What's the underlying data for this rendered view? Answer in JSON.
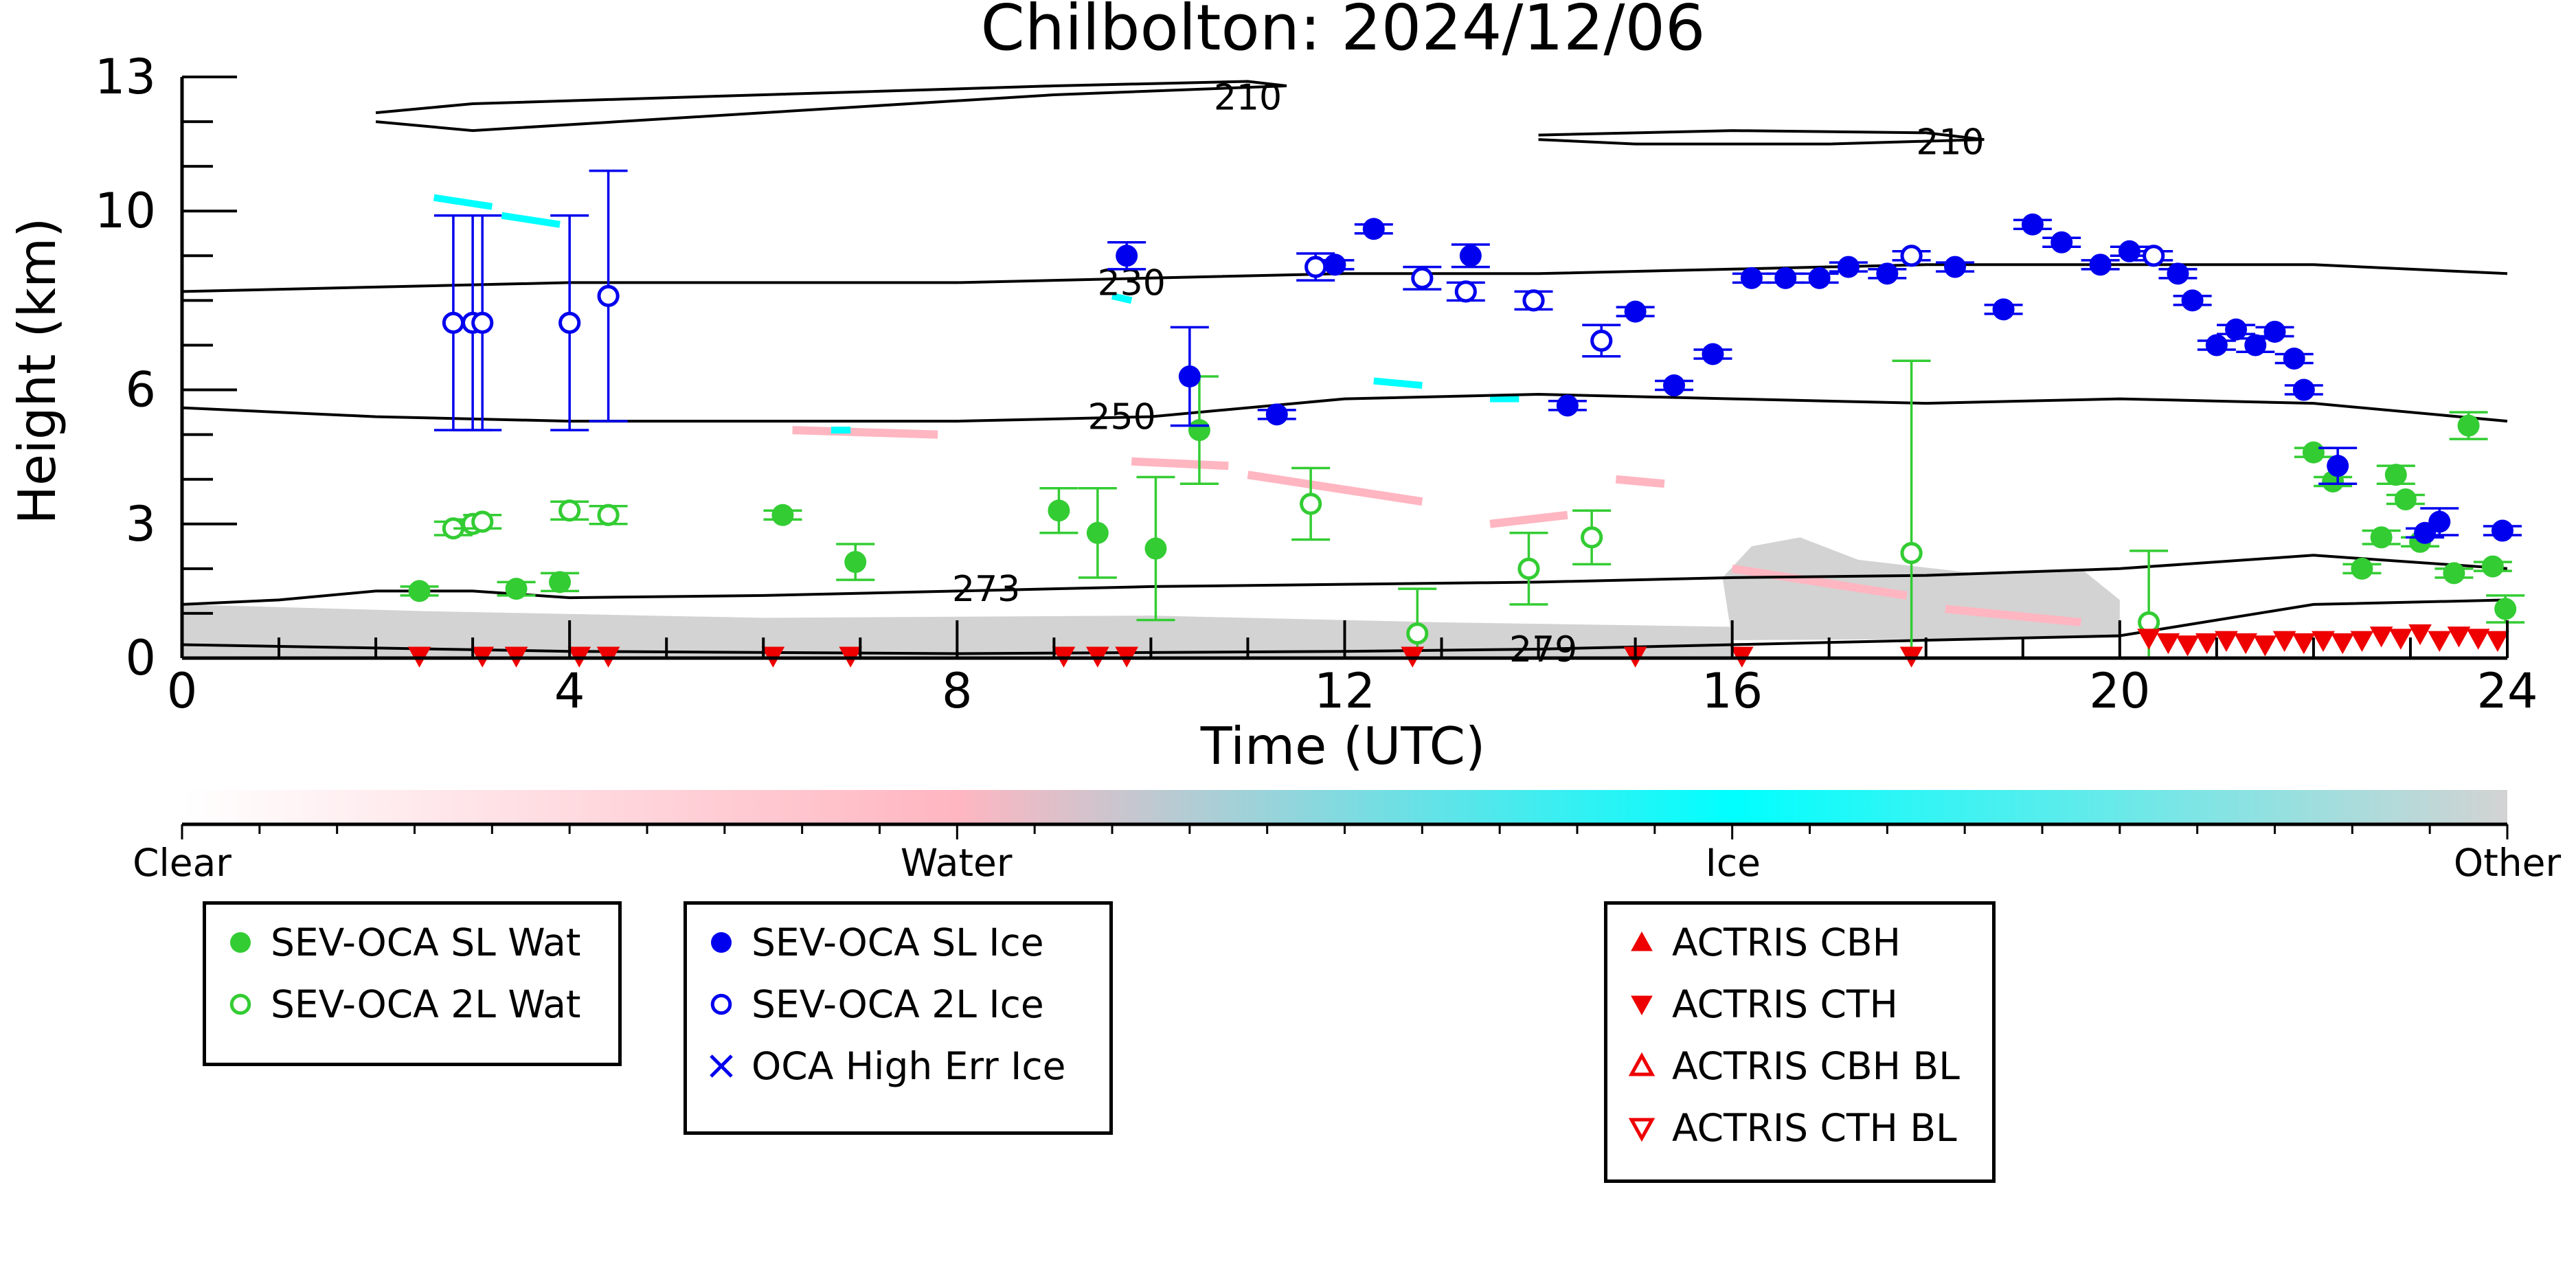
{
  "chart_data": {
    "type": "scatter",
    "title": "Chilbolton: 2024/12/06",
    "xlabel": "Time (UTC)",
    "ylabel": "Height (km)",
    "xlim": [
      0,
      24
    ],
    "ylim": [
      0,
      13
    ],
    "xticks": [
      0,
      4,
      8,
      12,
      16,
      20,
      24
    ],
    "yticks": [
      0,
      3,
      6,
      10,
      13
    ],
    "colorbar": {
      "labels": [
        "Clear",
        "Water",
        "Ice",
        "Other"
      ],
      "colors": [
        "#ffffff",
        "#ffb6c1",
        "#00ffff",
        "#d3d3d3"
      ]
    },
    "contours": [
      {
        "label": "210",
        "segments": [
          [
            [
              2.0,
              12.2
            ],
            [
              3.0,
              12.4
            ],
            [
              6.0,
              12.6
            ],
            [
              9.0,
              12.8
            ],
            [
              11.0,
              12.9
            ],
            [
              11.4,
              12.8
            ],
            [
              9.0,
              12.6
            ],
            [
              6.0,
              12.2
            ],
            [
              3.0,
              11.8
            ],
            [
              2.0,
              12.0
            ]
          ],
          [
            [
              14.0,
              11.7
            ],
            [
              16.0,
              11.8
            ],
            [
              18.0,
              11.75
            ],
            [
              18.6,
              11.6
            ],
            [
              17.0,
              11.5
            ],
            [
              15.0,
              11.5
            ],
            [
              14.0,
              11.6
            ]
          ]
        ]
      },
      {
        "label": "230",
        "segments": [
          [
            [
              0,
              8.2
            ],
            [
              2,
              8.3
            ],
            [
              4,
              8.4
            ],
            [
              8,
              8.4
            ],
            [
              10,
              8.5
            ],
            [
              12,
              8.6
            ],
            [
              14,
              8.6
            ],
            [
              16,
              8.7
            ],
            [
              18,
              8.8
            ],
            [
              20,
              8.8
            ],
            [
              22,
              8.8
            ],
            [
              24,
              8.6
            ]
          ]
        ]
      },
      {
        "label": "250",
        "segments": [
          [
            [
              0,
              5.6
            ],
            [
              2,
              5.4
            ],
            [
              4,
              5.3
            ],
            [
              8,
              5.3
            ],
            [
              10,
              5.4
            ],
            [
              12,
              5.8
            ],
            [
              14,
              5.9
            ],
            [
              16,
              5.8
            ],
            [
              18,
              5.7
            ],
            [
              20,
              5.8
            ],
            [
              22,
              5.7
            ],
            [
              24,
              5.3
            ]
          ]
        ]
      },
      {
        "label": "273",
        "segments": [
          [
            [
              0,
              1.2
            ],
            [
              1,
              1.3
            ],
            [
              2,
              1.5
            ],
            [
              3,
              1.5
            ],
            [
              4,
              1.35
            ],
            [
              6,
              1.4
            ],
            [
              8,
              1.5
            ],
            [
              10,
              1.6
            ],
            [
              12,
              1.65
            ],
            [
              14,
              1.7
            ],
            [
              16,
              1.8
            ],
            [
              18,
              1.85
            ],
            [
              20,
              2.0
            ],
            [
              22,
              2.3
            ],
            [
              24,
              2.0
            ]
          ]
        ]
      },
      {
        "label": "279",
        "segments": [
          [
            [
              0,
              0.3
            ],
            [
              4,
              0.15
            ],
            [
              8,
              0.1
            ],
            [
              12,
              0.15
            ],
            [
              14,
              0.2
            ],
            [
              16,
              0.3
            ],
            [
              18,
              0.4
            ],
            [
              20,
              0.5
            ],
            [
              22,
              1.2
            ],
            [
              24,
              1.3
            ]
          ]
        ]
      }
    ],
    "series": [
      {
        "name": "SEV-OCA SL Wat",
        "color": "#33cc33",
        "marker": "filled-circle",
        "points": [
          [
            2.45,
            1.5,
            0.1
          ],
          [
            3.45,
            1.55,
            0.15
          ],
          [
            3.9,
            1.7,
            0.2
          ],
          [
            6.2,
            3.2,
            0.1
          ],
          [
            6.95,
            2.15,
            0.4
          ],
          [
            9.05,
            3.3,
            0.5
          ],
          [
            9.45,
            2.8,
            1.0
          ],
          [
            10.05,
            2.45,
            1.6
          ],
          [
            10.5,
            5.1,
            1.2
          ],
          [
            22.0,
            4.6,
            0.1
          ],
          [
            22.2,
            3.95,
            0.1
          ],
          [
            22.5,
            2.0,
            0.1
          ],
          [
            22.7,
            2.7,
            0.15
          ],
          [
            22.85,
            4.1,
            0.2
          ],
          [
            22.95,
            3.55,
            0.1
          ],
          [
            23.1,
            2.6,
            0.1
          ],
          [
            23.45,
            1.9,
            0.1
          ],
          [
            23.6,
            5.2,
            0.3
          ],
          [
            23.85,
            2.05,
            0.1
          ],
          [
            23.98,
            1.1,
            0.3
          ]
        ]
      },
      {
        "name": "SEV-OCA 2L Wat",
        "color": "#33cc33",
        "marker": "open-circle",
        "points": [
          [
            2.8,
            2.9,
            0.15
          ],
          [
            3.0,
            3.0,
            0.1
          ],
          [
            3.1,
            3.05,
            0.15
          ],
          [
            4.0,
            3.3,
            0.2
          ],
          [
            4.4,
            3.2,
            0.2
          ],
          [
            11.65,
            3.45,
            0.8
          ],
          [
            12.75,
            0.55,
            1.0
          ],
          [
            13.9,
            2.0,
            0.8
          ],
          [
            14.55,
            2.7,
            0.6
          ],
          [
            17.85,
            2.35,
            4.3
          ],
          [
            20.3,
            0.8,
            1.6
          ]
        ]
      },
      {
        "name": "SEV-OCA SL Ice",
        "color": "#0000ee",
        "marker": "filled-circle",
        "points": [
          [
            9.75,
            9.0,
            0.3
          ],
          [
            10.4,
            6.3,
            1.1
          ],
          [
            11.3,
            5.45,
            0.1
          ],
          [
            11.9,
            8.8,
            0.1
          ],
          [
            12.3,
            9.6,
            0.1
          ],
          [
            13.3,
            9.0,
            0.25
          ],
          [
            14.3,
            5.65,
            0.1
          ],
          [
            15.0,
            7.75,
            0.1
          ],
          [
            15.4,
            6.1,
            0.1
          ],
          [
            15.8,
            6.8,
            0.1
          ],
          [
            16.2,
            8.5,
            0.1
          ],
          [
            16.55,
            8.5,
            0.1
          ],
          [
            16.9,
            8.5,
            0.1
          ],
          [
            17.2,
            8.75,
            0.1
          ],
          [
            17.6,
            8.6,
            0.1
          ],
          [
            18.3,
            8.75,
            0.1
          ],
          [
            18.8,
            7.8,
            0.1
          ],
          [
            19.1,
            9.7,
            0.1
          ],
          [
            19.4,
            9.3,
            0.1
          ],
          [
            19.8,
            8.8,
            0.1
          ],
          [
            20.1,
            9.1,
            0.1
          ],
          [
            20.6,
            8.6,
            0.1
          ],
          [
            20.75,
            8.0,
            0.1
          ],
          [
            21.0,
            7.0,
            0.1
          ],
          [
            21.2,
            7.35,
            0.1
          ],
          [
            21.4,
            7.0,
            0.15
          ],
          [
            21.6,
            7.3,
            0.1
          ],
          [
            21.8,
            6.7,
            0.1
          ],
          [
            21.9,
            6.0,
            0.1
          ],
          [
            22.25,
            4.3,
            0.4
          ],
          [
            23.15,
            2.8,
            0.1
          ],
          [
            23.3,
            3.05,
            0.3
          ],
          [
            23.95,
            2.85,
            0.1
          ]
        ]
      },
      {
        "name": "SEV-OCA 2L Ice",
        "color": "#0000ee",
        "marker": "open-circle",
        "points": [
          [
            2.8,
            7.5,
            2.4
          ],
          [
            3.0,
            7.5,
            2.4
          ],
          [
            3.1,
            7.5,
            2.4
          ],
          [
            4.0,
            7.5,
            2.4
          ],
          [
            4.4,
            8.1,
            2.8
          ],
          [
            11.7,
            8.75,
            0.3
          ],
          [
            12.8,
            8.5,
            0.25
          ],
          [
            13.25,
            8.2,
            0.2
          ],
          [
            13.95,
            8.0,
            0.2
          ],
          [
            14.65,
            7.1,
            0.35
          ],
          [
            17.85,
            9.0,
            0.1
          ],
          [
            20.35,
            9.0,
            0.1
          ]
        ]
      },
      {
        "name": "OCA High Err Ice",
        "color": "#0000ee",
        "marker": "x",
        "points": []
      },
      {
        "name": "ACTRIS CBH",
        "color": "#ee0000",
        "marker": "triangle-up",
        "points": []
      },
      {
        "name": "ACTRIS CTH",
        "color": "#ee0000",
        "marker": "triangle-down",
        "points": [
          [
            2.45,
            0.05
          ],
          [
            3.1,
            0.05
          ],
          [
            3.45,
            0.05
          ],
          [
            4.1,
            0.05
          ],
          [
            4.4,
            0.05
          ],
          [
            6.1,
            0.05
          ],
          [
            6.9,
            0.05
          ],
          [
            9.1,
            0.05
          ],
          [
            9.45,
            0.05
          ],
          [
            9.75,
            0.05
          ],
          [
            12.7,
            0.05
          ],
          [
            15.0,
            0.05
          ],
          [
            16.1,
            0.05
          ],
          [
            17.85,
            0.05
          ],
          [
            20.3,
            0.45
          ],
          [
            20.5,
            0.35
          ],
          [
            20.7,
            0.3
          ],
          [
            20.9,
            0.35
          ],
          [
            21.1,
            0.4
          ],
          [
            21.3,
            0.35
          ],
          [
            21.5,
            0.3
          ],
          [
            21.7,
            0.4
          ],
          [
            21.9,
            0.35
          ],
          [
            22.1,
            0.4
          ],
          [
            22.3,
            0.35
          ],
          [
            22.5,
            0.4
          ],
          [
            22.7,
            0.5
          ],
          [
            22.9,
            0.45
          ],
          [
            23.1,
            0.55
          ],
          [
            23.3,
            0.4
          ],
          [
            23.5,
            0.5
          ],
          [
            23.7,
            0.45
          ],
          [
            23.9,
            0.4
          ]
        ]
      },
      {
        "name": "ACTRIS CBH BL",
        "color": "#ee0000",
        "marker": "open-triangle-up",
        "points": []
      },
      {
        "name": "ACTRIS CTH BL",
        "color": "#ee0000",
        "marker": "open-triangle-down",
        "points": []
      }
    ]
  },
  "legend_groups": [
    {
      "items": [
        "SEV-OCA SL Wat",
        "SEV-OCA 2L Wat"
      ]
    },
    {
      "items": [
        "SEV-OCA SL Ice",
        "SEV-OCA 2L Ice",
        "OCA High Err Ice"
      ]
    },
    {
      "items": [
        "ACTRIS CBH",
        "ACTRIS CTH",
        "ACTRIS CBH BL",
        "ACTRIS CTH BL"
      ]
    }
  ]
}
